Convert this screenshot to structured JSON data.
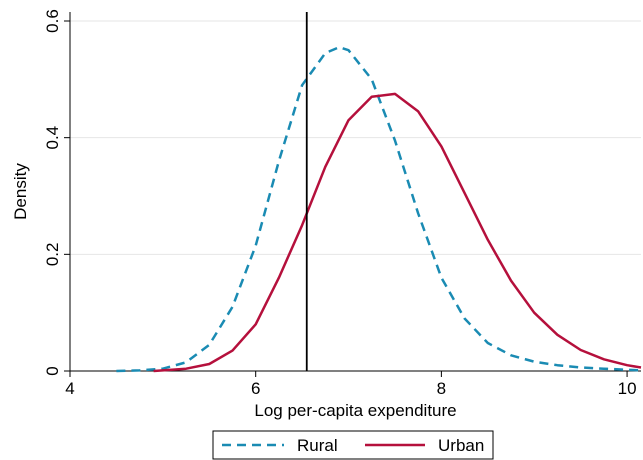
{
  "chart_data": {
    "type": "line",
    "title": "",
    "xlabel": "Log per-capita expenditure",
    "ylabel": "Density",
    "xlim": [
      4,
      10.15
    ],
    "ylim": [
      0,
      0.6
    ],
    "xticks": [
      4,
      6,
      8,
      10
    ],
    "yticks": [
      0,
      0.2,
      0.4,
      0.6
    ],
    "x_tick_labels": [
      "4",
      "6",
      "8",
      "10"
    ],
    "y_tick_labels": [
      "0",
      "0.2",
      "0.4",
      "0.6"
    ],
    "grid": "horizontal",
    "legend_position": "bottom",
    "vline_x": 6.55,
    "series": [
      {
        "name": "Rural",
        "style": "dashed",
        "color": "#1a8bb3",
        "x": [
          4.5,
          4.75,
          5.0,
          5.25,
          5.5,
          5.75,
          6.0,
          6.25,
          6.5,
          6.75,
          6.9,
          7.0,
          7.25,
          7.5,
          7.75,
          8.0,
          8.25,
          8.5,
          8.75,
          9.0,
          9.25,
          9.5,
          9.75,
          10.0,
          10.15
        ],
        "values": [
          0.0,
          0.001,
          0.004,
          0.015,
          0.045,
          0.11,
          0.215,
          0.36,
          0.49,
          0.545,
          0.555,
          0.55,
          0.5,
          0.395,
          0.27,
          0.16,
          0.09,
          0.048,
          0.027,
          0.016,
          0.01,
          0.006,
          0.004,
          0.002,
          0.001
        ]
      },
      {
        "name": "Urban",
        "style": "solid",
        "color": "#b5103c",
        "x": [
          4.9,
          5.0,
          5.25,
          5.5,
          5.75,
          6.0,
          6.25,
          6.5,
          6.75,
          7.0,
          7.25,
          7.5,
          7.75,
          8.0,
          8.25,
          8.5,
          8.75,
          9.0,
          9.25,
          9.5,
          9.75,
          10.0,
          10.15
        ],
        "values": [
          0.0,
          0.001,
          0.004,
          0.012,
          0.035,
          0.08,
          0.16,
          0.25,
          0.35,
          0.43,
          0.47,
          0.475,
          0.445,
          0.385,
          0.305,
          0.225,
          0.155,
          0.1,
          0.062,
          0.036,
          0.02,
          0.01,
          0.006
        ]
      }
    ]
  }
}
